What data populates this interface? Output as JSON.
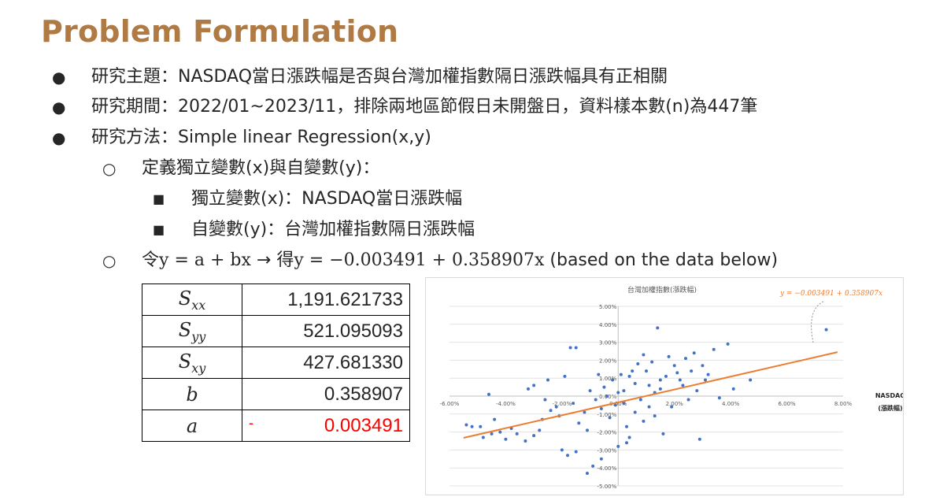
{
  "slide": {
    "title": "Problem Formulation",
    "bullets": [
      {
        "level": 1,
        "marker": "●",
        "text": "研究主題：NASDAQ當日漲跌幅是否與台灣加權指數隔日漲跌幅具有正相關"
      },
      {
        "level": 1,
        "marker": "●",
        "text": "研究期間：2022/01~2023/11，排除兩地區節假日未開盤日，資料樣本數(n)為447筆"
      },
      {
        "level": 1,
        "marker": "●",
        "text": "研究方法：Simple linear Regression(x,y)"
      },
      {
        "level": 2,
        "marker": "○",
        "text": "定義獨立變數(x)與自變數(y)："
      },
      {
        "level": 3,
        "marker": "■",
        "text": "獨立變數(x)：NASDAQ當日漲跌幅"
      },
      {
        "level": 3,
        "marker": "■",
        "text": "自變數(y)：台灣加權指數隔日漲跌幅"
      }
    ],
    "formula_line": {
      "marker": "○",
      "prefix": "令",
      "model": "y = a + bx",
      "arrow": "→",
      "mid": "得",
      "fitted": "y = −0.003491 + 0.358907x",
      "suffix": "(based on the data below)"
    }
  },
  "stats_table": {
    "rows": [
      {
        "symbol": "S",
        "sub": "xx",
        "value": "1,191.621733"
      },
      {
        "symbol": "S",
        "sub": "yy",
        "value": "521.095093"
      },
      {
        "symbol": "S",
        "sub": "xy",
        "value": "427.681330"
      },
      {
        "symbol": "b",
        "sub": "",
        "value": "0.358907"
      },
      {
        "symbol": "a",
        "sub": "",
        "value": "0.003491",
        "sign": "-"
      }
    ]
  },
  "chart_data": {
    "type": "scatter",
    "title": "台灣加權指數(漲跌幅)",
    "xlabel": "NASDAQ (漲跌幅)",
    "ylabel": "",
    "xlim": [
      -0.06,
      0.08
    ],
    "ylim": [
      -0.05,
      0.05
    ],
    "x_ticks": [
      "-6.00%",
      "-4.00%",
      "-2.00%",
      "0.00%",
      "2.00%",
      "4.00%",
      "6.00%",
      "8.00%"
    ],
    "y_ticks": [
      "5.00%",
      "4.00%",
      "3.00%",
      "2.00%",
      "1.00%",
      "0.00%",
      "-1.00%",
      "-2.00%",
      "-3.00%",
      "-4.00%",
      "-5.00%"
    ],
    "grid": "horizontal",
    "point_color": "#4472c4",
    "trendline": {
      "color": "#ed7d31",
      "intercept": -0.003491,
      "slope": 0.358907,
      "label": "y = −0.003491 + 0.358907x",
      "x_range": [
        -0.055,
        0.078
      ]
    },
    "points": [
      [
        0.074,
        0.037
      ],
      [
        0.047,
        0.009
      ],
      [
        0.039,
        0.029
      ],
      [
        0.034,
        0.026
      ],
      [
        0.036,
        -0.001
      ],
      [
        0.041,
        0.004
      ],
      [
        0.027,
        0.024
      ],
      [
        0.03,
        0.017
      ],
      [
        0.032,
        0.012
      ],
      [
        0.028,
        0.003
      ],
      [
        0.025,
        -0.002
      ],
      [
        0.029,
        -0.024
      ],
      [
        -0.054,
        -0.016
      ],
      [
        -0.049,
        -0.017
      ],
      [
        -0.052,
        -0.017
      ],
      [
        -0.045,
        -0.021
      ],
      [
        -0.048,
        -0.023
      ],
      [
        -0.042,
        -0.02
      ],
      [
        -0.04,
        -0.024
      ],
      [
        -0.038,
        -0.018
      ],
      [
        -0.036,
        -0.021
      ],
      [
        -0.033,
        -0.025
      ],
      [
        -0.03,
        -0.022
      ],
      [
        -0.028,
        -0.019
      ],
      [
        -0.044,
        -0.013
      ],
      [
        -0.046,
        0.001
      ],
      [
        -0.03,
        0.006
      ],
      [
        -0.032,
        0.004
      ],
      [
        -0.025,
        0.009
      ],
      [
        -0.017,
        0.027
      ],
      [
        -0.015,
        0.027
      ],
      [
        -0.019,
        0.011
      ],
      [
        -0.026,
        -0.002
      ],
      [
        -0.022,
        -0.006
      ],
      [
        -0.02,
        -0.03
      ],
      [
        -0.018,
        -0.033
      ],
      [
        -0.015,
        -0.031
      ],
      [
        -0.011,
        -0.043
      ],
      [
        -0.009,
        -0.039
      ],
      [
        -0.006,
        -0.035
      ],
      [
        0.0,
        -0.028
      ],
      [
        0.003,
        -0.026
      ],
      [
        -0.001,
        -0.005
      ],
      [
        0.002,
        0.003
      ],
      [
        0.004,
        0.011
      ],
      [
        0.006,
        0.007
      ],
      [
        0.008,
        -0.002
      ],
      [
        0.01,
        0.014
      ],
      [
        0.012,
        0.019
      ],
      [
        0.015,
        0.004
      ],
      [
        0.014,
        0.038
      ],
      [
        0.018,
        0.022
      ],
      [
        0.02,
        0.017
      ],
      [
        0.022,
        0.009
      ],
      [
        0.024,
        0.021
      ],
      [
        0.019,
        -0.006
      ],
      [
        0.016,
        -0.021
      ],
      [
        0.013,
        -0.011
      ],
      [
        0.009,
        -0.014
      ],
      [
        0.006,
        -0.009
      ],
      [
        0.003,
        -0.017
      ],
      [
        -0.003,
        -0.012
      ],
      [
        -0.006,
        -0.007
      ],
      [
        -0.008,
        -0.002
      ],
      [
        -0.01,
        0.003
      ],
      [
        -0.012,
        -0.009
      ],
      [
        -0.014,
        -0.015
      ],
      [
        -0.016,
        -0.004
      ],
      [
        -0.005,
        0.005
      ],
      [
        -0.002,
        0.009
      ],
      [
        0.001,
        0.012
      ],
      [
        0.005,
        0.014
      ],
      [
        0.007,
        0.018
      ],
      [
        0.011,
        0.006
      ],
      [
        0.017,
        0.011
      ],
      [
        0.021,
        0.013
      ],
      [
        0.023,
        0.006
      ],
      [
        0.026,
        0.014
      ],
      [
        0.031,
        0.009
      ],
      [
        -0.004,
        0.0
      ],
      [
        0.0,
        0.002
      ],
      [
        0.002,
        -0.004
      ],
      [
        -0.007,
        0.012
      ],
      [
        0.009,
        0.023
      ],
      [
        -0.011,
        -0.019
      ],
      [
        0.004,
        -0.023
      ],
      [
        -0.021,
        -0.011
      ],
      [
        -0.024,
        -0.008
      ],
      [
        -0.027,
        -0.013
      ],
      [
        0.011,
        -0.006
      ],
      [
        0.015,
        0.009
      ],
      [
        0.013,
        0.002
      ]
    ]
  }
}
